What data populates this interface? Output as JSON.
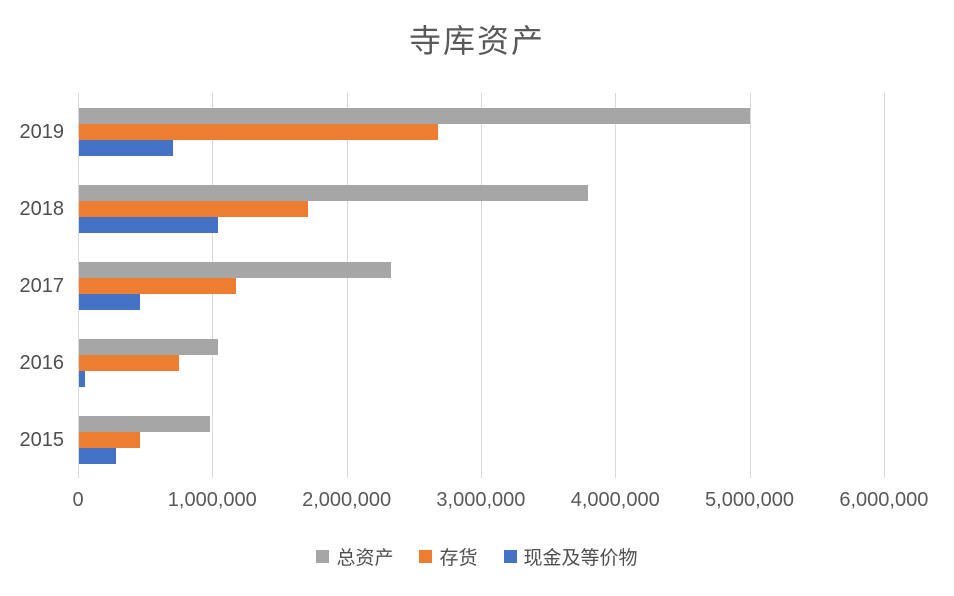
{
  "chart": {
    "title": "寺库资产"
  },
  "colors": {
    "series_total_assets": "#A6A6A6",
    "series_inventory": "#ED7D31",
    "series_cash": "#4472C4",
    "gridline": "#D9D9D9",
    "title_text": "#595959",
    "axis_text": "#595959",
    "background": "#FFFFFF"
  },
  "chart_data": {
    "type": "bar",
    "orientation": "horizontal",
    "title": "寺库资产",
    "xlabel": "",
    "ylabel": "",
    "categories": [
      "2019",
      "2018",
      "2017",
      "2016",
      "2015"
    ],
    "series": [
      {
        "name": "总资产",
        "color": "#A6A6A6",
        "values": [
          5000000,
          3800000,
          2330000,
          1040000,
          980000
        ]
      },
      {
        "name": "存货",
        "color": "#ED7D31",
        "values": [
          2680000,
          1710000,
          1180000,
          750000,
          460000
        ]
      },
      {
        "name": "现金及等价物",
        "color": "#4472C4",
        "values": [
          710000,
          1040000,
          460000,
          55000,
          280000
        ]
      }
    ],
    "xlim": [
      0,
      6500000
    ],
    "x_ticks": [
      0,
      1000000,
      2000000,
      3000000,
      4000000,
      5000000,
      6000000
    ],
    "x_tick_labels": [
      "0",
      "1,000,000",
      "2,000,000",
      "3,000,000",
      "4,000,000",
      "5,000,000",
      "6,000,000"
    ],
    "grid": true,
    "legend_position": "bottom"
  }
}
